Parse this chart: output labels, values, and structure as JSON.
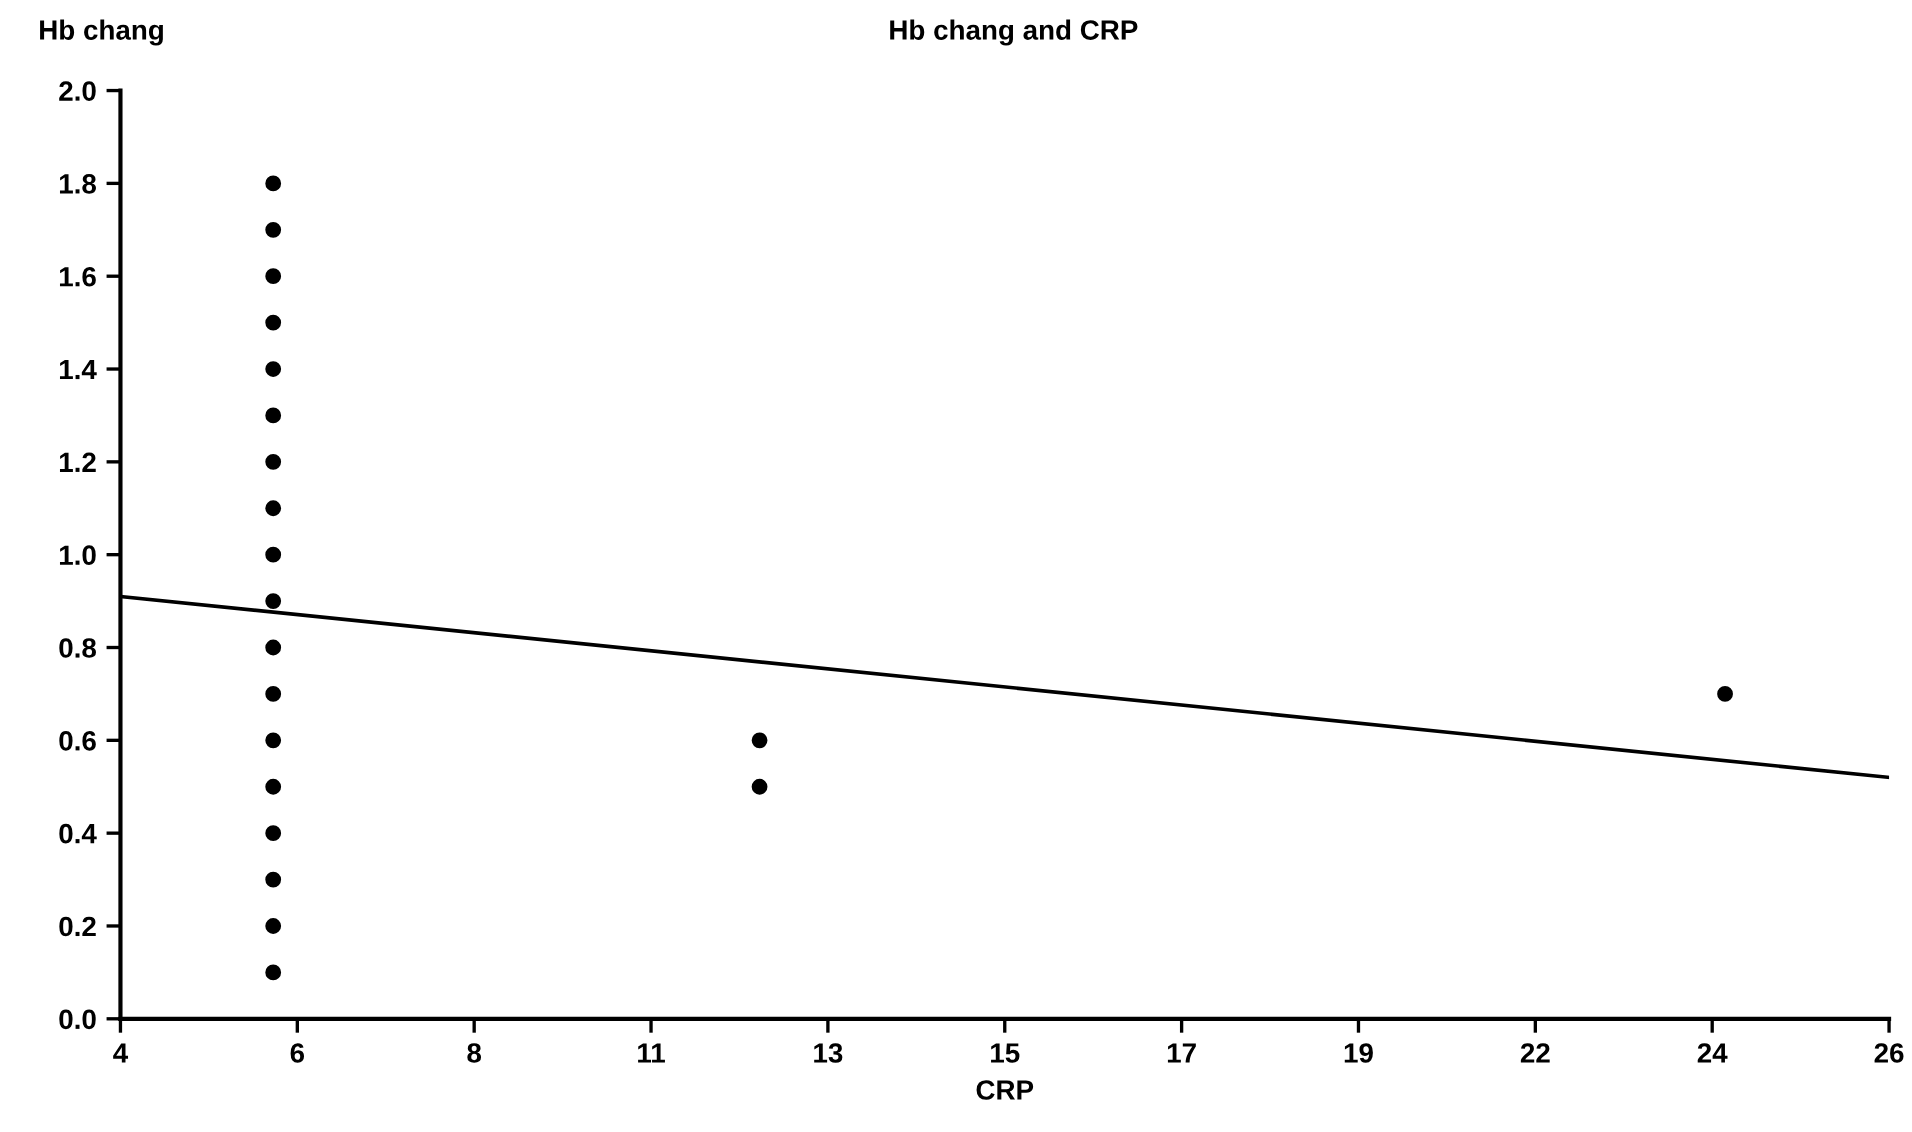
{
  "chart_data": {
    "type": "scatter",
    "title": "Hb chang and CRP",
    "xlabel": "CRP",
    "ylabel": "Hb chang",
    "series": [
      {
        "marker": "circle",
        "color": "#000000",
        "x": [
          5.9,
          5.9,
          5.9,
          5.9,
          5.9,
          5.9,
          5.9,
          5.9,
          5.9,
          5.9,
          5.9,
          5.9,
          5.9,
          5.9,
          5.9,
          5.9,
          5.9,
          5.9,
          11.95,
          11.95,
          23.96
        ],
        "values": [
          1.8,
          1.7,
          1.6,
          1.5,
          1.4,
          1.3,
          1.2,
          1.1,
          1.0,
          0.9,
          0.8,
          0.7,
          0.6,
          0.5,
          0.4,
          0.3,
          0.2,
          0.1,
          0.6,
          0.5,
          0.7
        ]
      },
      {
        "type": "line",
        "color": "#000000",
        "x": [
          4,
          26
        ],
        "values": [
          0.91,
          0.52
        ]
      }
    ],
    "xlim": [
      4,
      26
    ],
    "xticks": [
      4,
      {
        "value": 6.2,
        "label": "6"
      },
      {
        "value": 8.4,
        "label": "8"
      },
      {
        "value": 10.6,
        "label": "11"
      },
      {
        "value": 12.8,
        "label": "13"
      },
      15,
      {
        "value": 17.2,
        "label": "17"
      },
      {
        "value": 19.4,
        "label": "19"
      },
      {
        "value": 21.6,
        "label": "22"
      },
      {
        "value": 23.8,
        "label": "24"
      },
      26
    ],
    "ylim": [
      0,
      2
    ],
    "yticks": [
      {
        "value": 0,
        "label": "0.0"
      },
      {
        "value": 0.2,
        "label": "0.2"
      },
      {
        "value": 0.4,
        "label": "0.4"
      },
      {
        "value": 0.6,
        "label": "0.6"
      },
      {
        "value": 0.8,
        "label": "0.8"
      },
      {
        "value": 1.0,
        "label": "1.0"
      },
      {
        "value": 1.2,
        "label": "1.2"
      },
      {
        "value": 1.4,
        "label": "1.4"
      },
      {
        "value": 1.6,
        "label": "1.6"
      },
      {
        "value": 1.8,
        "label": "1.8"
      },
      {
        "value": 2.0,
        "label": "2.0"
      }
    ],
    "grid": false,
    "legend": false
  }
}
